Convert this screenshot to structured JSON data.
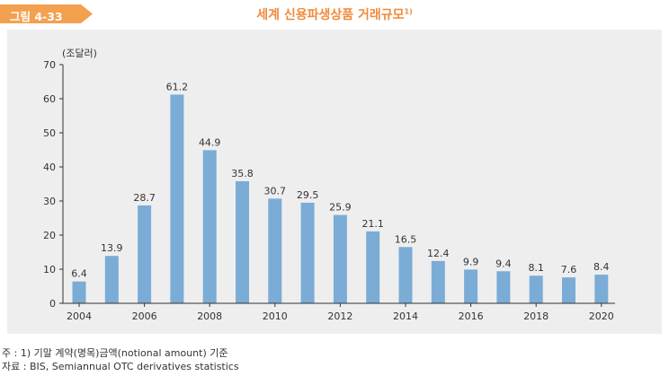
{
  "figure_label": "그림 4-33",
  "title": "세계 신용파생상품 거래규모",
  "title_footnote": "1)",
  "notes": [
    "주 : 1) 기말 계약(명목)금액(notional amount) 기준",
    "자료 : BIS, Semiannual OTC derivatives statistics"
  ],
  "colors": {
    "bar": "#7aacd6",
    "tag": "#f3a04f",
    "title": "#f08a3a",
    "panel": "#eeeeee"
  },
  "chart_data": {
    "type": "bar",
    "title": "세계 신용파생상품 거래규모",
    "ylabel": "(조달러)",
    "xlabel": "",
    "ylim": [
      0,
      70
    ],
    "yticks": [
      0,
      10,
      20,
      30,
      40,
      50,
      60,
      70
    ],
    "xtick_labels": [
      "2004",
      "2006",
      "2008",
      "2010",
      "2012",
      "2014",
      "2016",
      "2018",
      "2020"
    ],
    "categories": [
      "2004",
      "2005",
      "2006",
      "2007",
      "2008",
      "2009",
      "2010",
      "2011",
      "2012",
      "2013",
      "2014",
      "2015",
      "2016",
      "2017",
      "2018",
      "2019",
      "2020"
    ],
    "values": [
      6.4,
      13.9,
      28.7,
      61.2,
      44.9,
      35.8,
      30.7,
      29.5,
      25.9,
      21.1,
      16.5,
      12.4,
      9.9,
      9.4,
      8.1,
      7.6,
      8.4
    ],
    "value_labels": [
      "6.4",
      "13.9",
      "28.7",
      "61.2",
      "44.9",
      "35.8",
      "30.7",
      "29.5",
      "25.9",
      "21.1",
      "16.5",
      "12.4",
      "9.9",
      "9.4",
      "8.1",
      "7.6",
      "8.4"
    ],
    "grid": false,
    "legend": "none"
  }
}
